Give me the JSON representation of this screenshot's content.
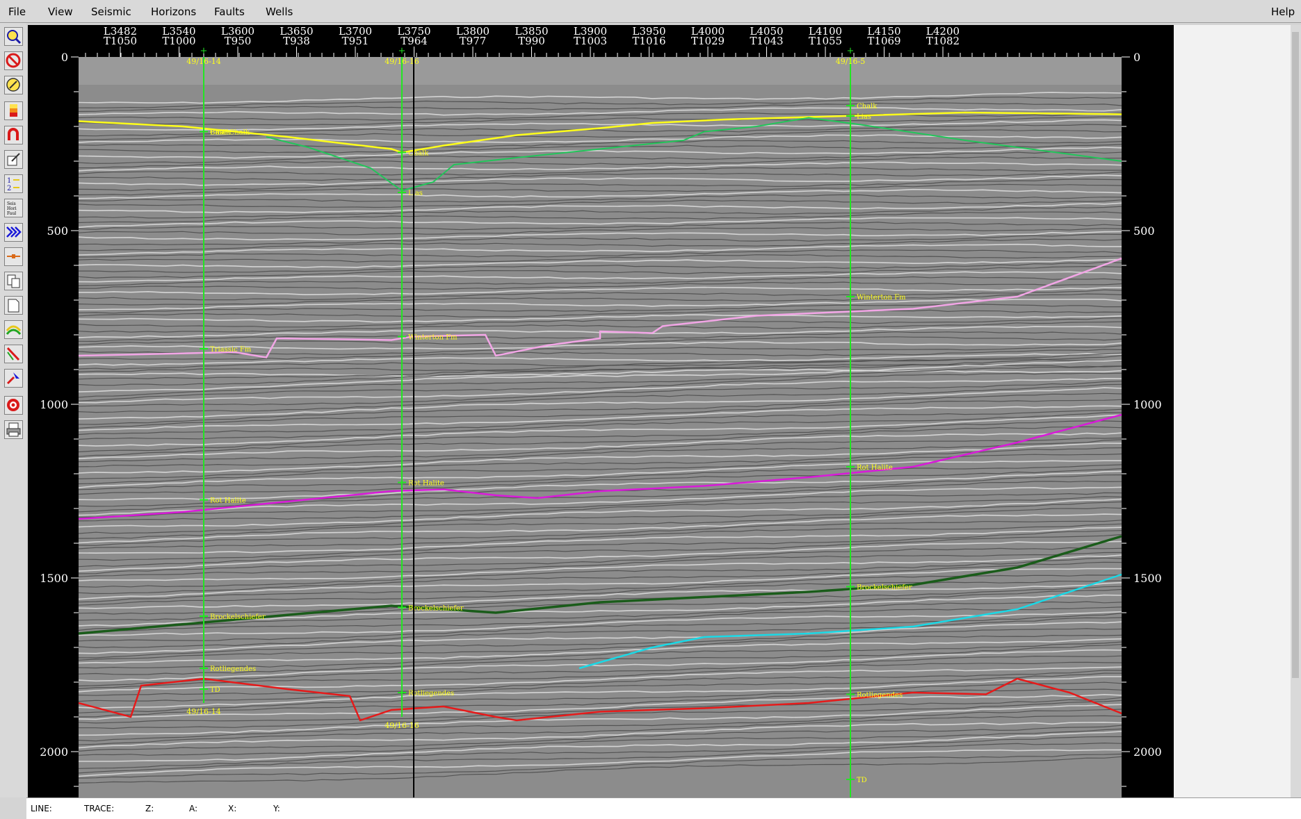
{
  "menubar": {
    "items": [
      "File",
      "View",
      "Seismic",
      "Horizons",
      "Faults",
      "Wells"
    ],
    "help": "Help"
  },
  "toolbar": {
    "tools": [
      "zoom-icon",
      "no-entry-icon",
      "pencil-icon",
      "color-bar-icon",
      "magnet-icon",
      "edit-icon",
      "swap-1-2-icon",
      "seis-hori-faul-icon",
      "arrows-icon",
      "line-icon",
      "copy-icon",
      "page-icon",
      "horizon-icon",
      "fault-icon",
      "pick-icon",
      "target-icon",
      "print-icon"
    ],
    "seis_hori_faul_text": [
      "Seis",
      "Hori",
      "Faul"
    ],
    "swap_text": [
      "1",
      "2"
    ]
  },
  "section": {
    "top_axis": [
      {
        "line": "L3482",
        "trace": "T1050"
      },
      {
        "line": "L3540",
        "trace": "T1000"
      },
      {
        "line": "L3600",
        "trace": "T950"
      },
      {
        "line": "L3650",
        "trace": "T938"
      },
      {
        "line": "L3700",
        "trace": "T951"
      },
      {
        "line": "L3750",
        "trace": "T964"
      },
      {
        "line": "L3800",
        "trace": "T977"
      },
      {
        "line": "L3850",
        "trace": "T990"
      },
      {
        "line": "L3900",
        "trace": "T1003"
      },
      {
        "line": "L3950",
        "trace": "T1016"
      },
      {
        "line": "L4000",
        "trace": "T1029"
      },
      {
        "line": "L4050",
        "trace": "T1043"
      },
      {
        "line": "L4100",
        "trace": "T1055"
      },
      {
        "line": "L4150",
        "trace": "T1069"
      },
      {
        "line": "L4200",
        "trace": "T1082"
      }
    ],
    "time_ticks": [
      "0",
      "500",
      "1000",
      "1500",
      "2000"
    ],
    "horizon_colors": {
      "chalk": "#ffff1a",
      "base_chalk": "#22c55a",
      "winterton": "#f2a6e6",
      "rot_halite": "#d91ad9",
      "bunter": "#1a5c1a",
      "zechstein": "#1ad9e6",
      "rotliegendes": "#e61a1a",
      "well": "#22e622"
    },
    "wells": [
      {
        "name_top": "49/16-14",
        "name_bottom": "49/16-14",
        "markers": [
          "Chalk",
          "Base Chalk",
          "Triassic Fm",
          "Rot Halite",
          "Brockelschiefer",
          "Rotliegendes",
          "TD"
        ]
      },
      {
        "name_top": "49/16-16",
        "name_bottom": "49/16-16",
        "markers": [
          "Chalk",
          "Lias",
          "Winterton Fm",
          "Rot Halite",
          "Brockelschiefer",
          "Rotliegendes"
        ]
      },
      {
        "name_top": "49/16-5",
        "name_bottom": "",
        "markers": [
          "Chalk",
          "Lias",
          "Winterton Fm",
          "Rot Halite",
          "Brockelschiefer",
          "Rotliegendes",
          "TD"
        ]
      }
    ]
  },
  "statusbar": {
    "labels": [
      "LINE:",
      "TRACE:",
      "Z:",
      "A:",
      "X:",
      "Y:"
    ]
  }
}
